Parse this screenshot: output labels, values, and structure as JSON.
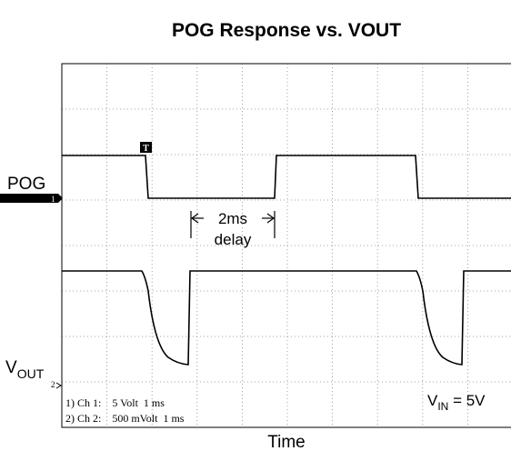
{
  "figure": {
    "title": "POG Response vs. VOUT",
    "pog_label": "POG",
    "ch1_marker": "1",
    "trigger_marker": "T",
    "ch2_marker": "2",
    "vout_label": {
      "main": "V",
      "sub": "OUT"
    },
    "delay_annotation": [
      "2ms",
      "delay"
    ],
    "channel_info": [
      "1) Ch 1:    5 Volt  1 ms",
      "2) Ch 2:    500 mVolt  1 ms"
    ],
    "vin_label": {
      "main": "V",
      "sub": "IN",
      "rest": " = 5V"
    },
    "x_label": "Time"
  }
}
